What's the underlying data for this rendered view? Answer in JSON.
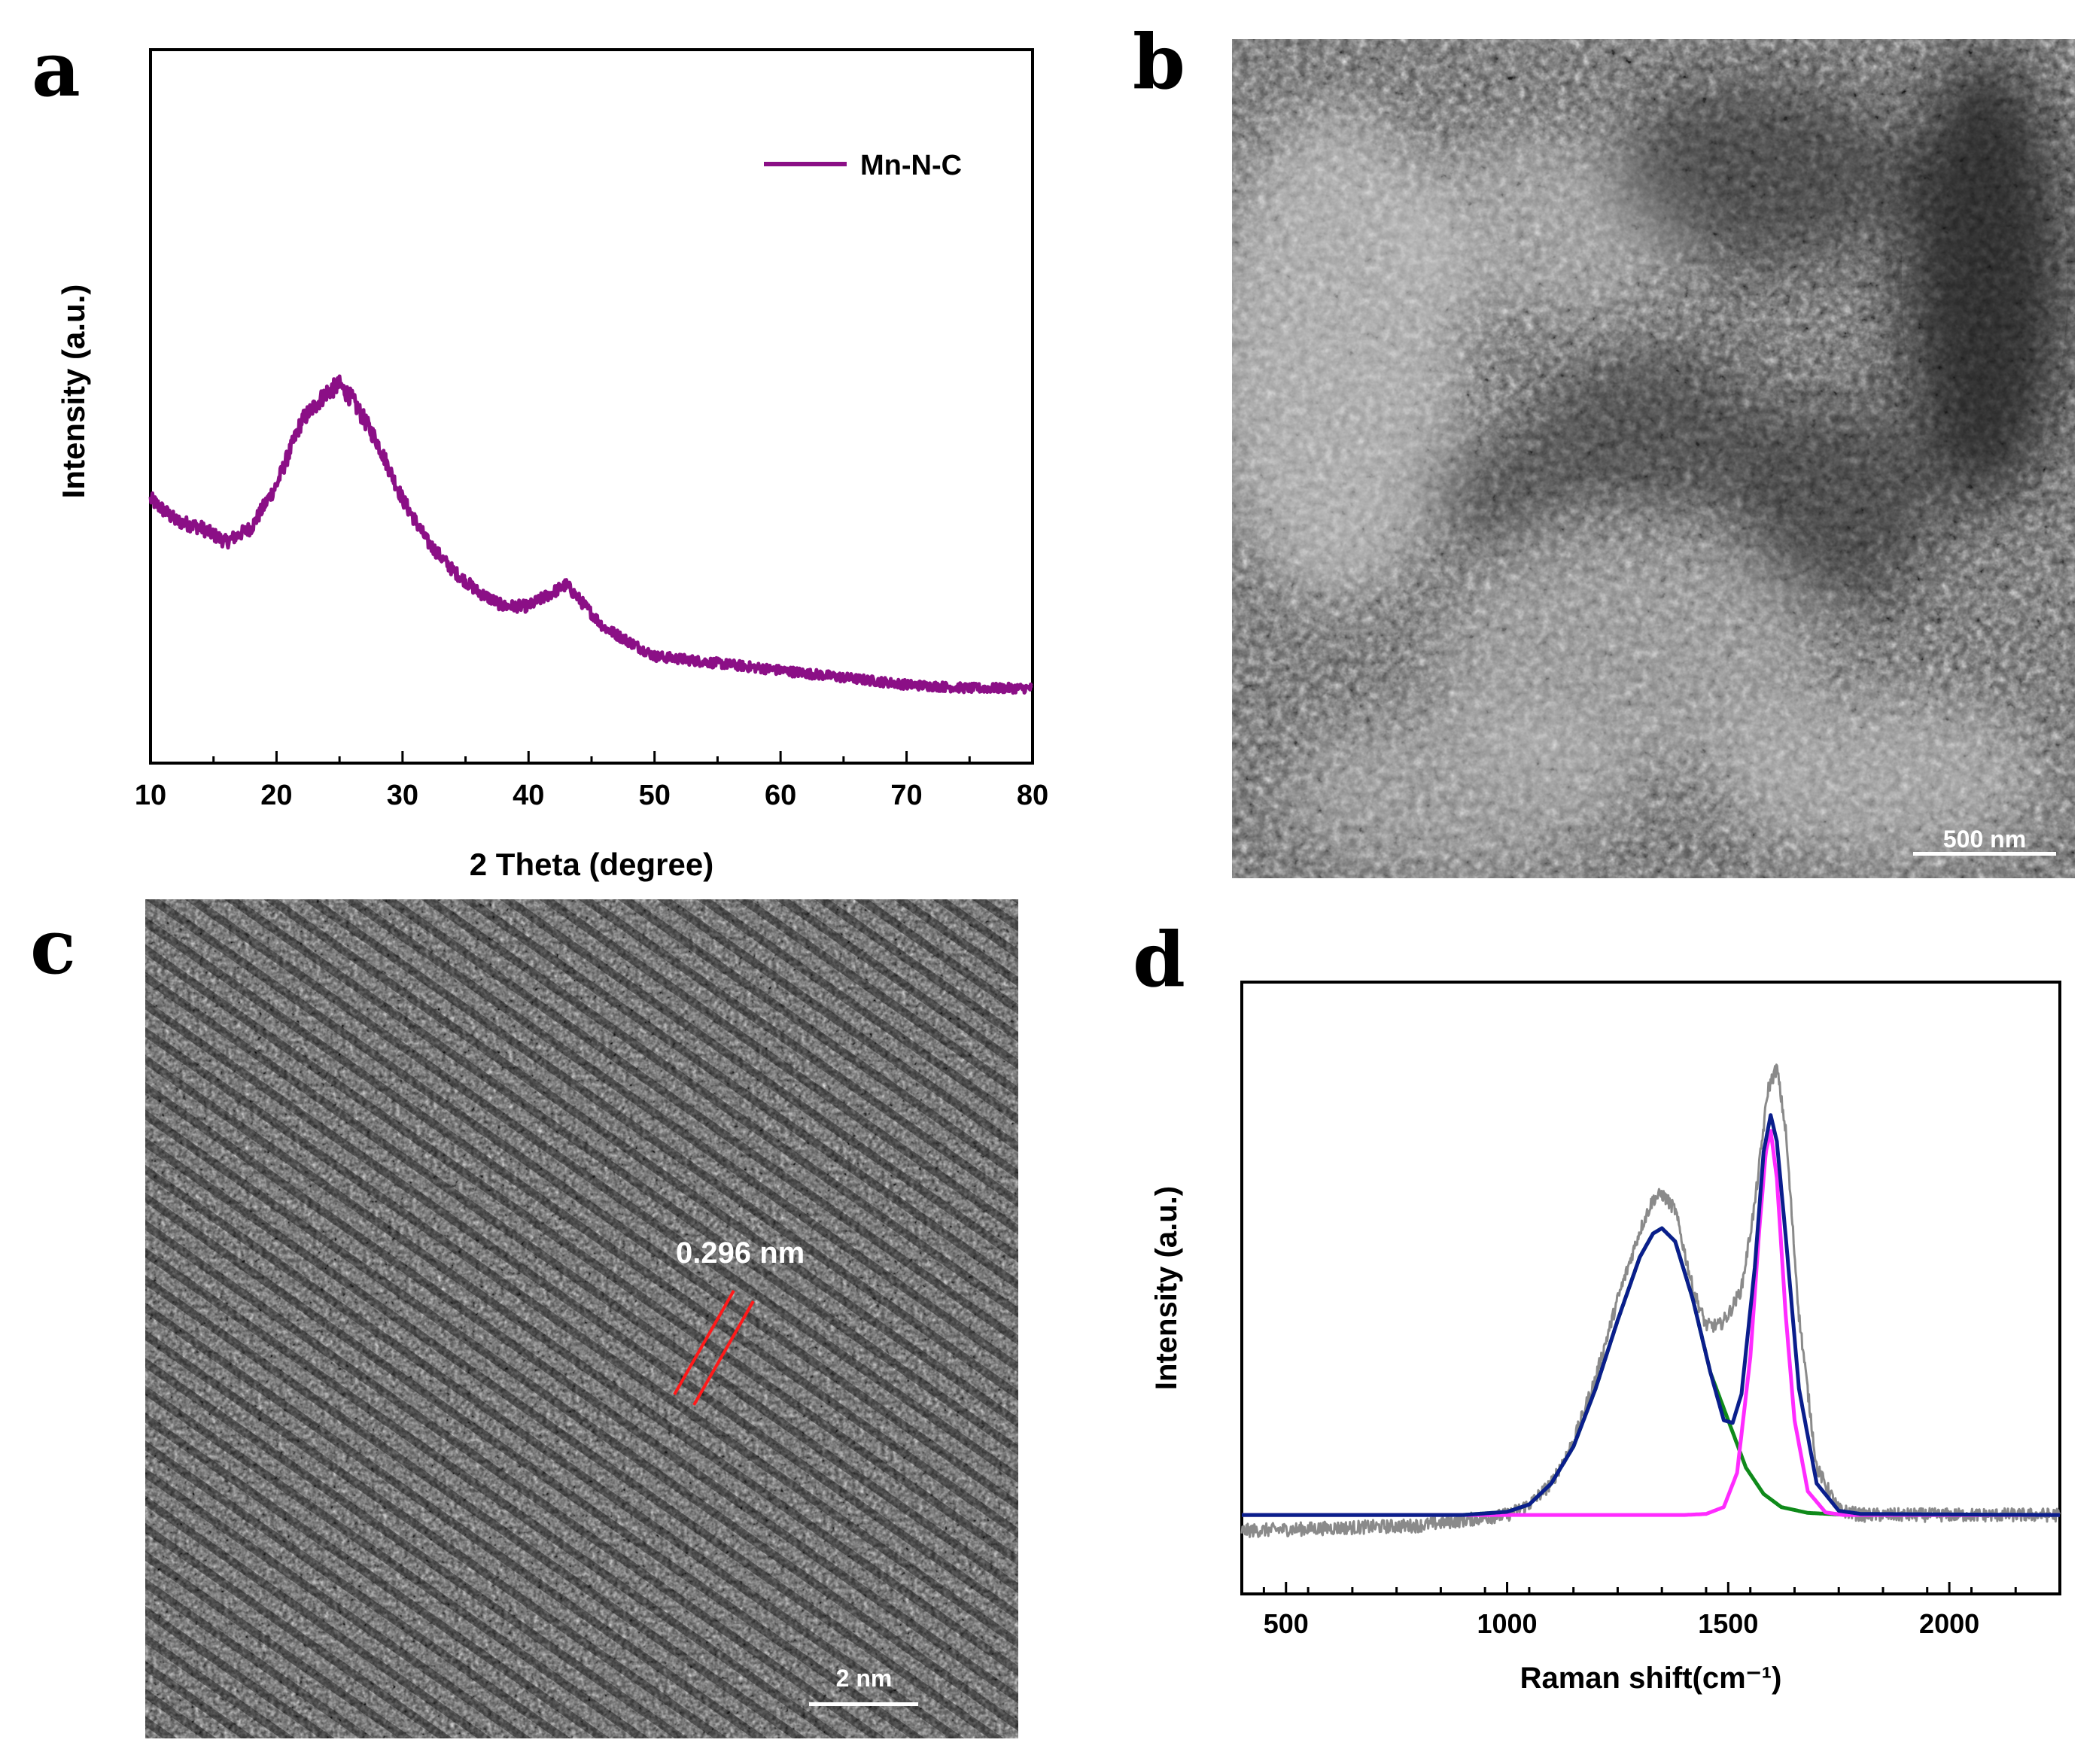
{
  "panels": {
    "a": {
      "letter": "a"
    },
    "b": {
      "letter": "b",
      "scale_bar": "500 nm"
    },
    "c": {
      "letter": "c",
      "scale_bar": "2 nm",
      "annotation": "0.296 nm"
    },
    "d": {
      "letter": "d"
    }
  },
  "colors": {
    "xrd": "#8b0f86",
    "raw": "#8a8a8a",
    "fit_total": "#0a1e8c",
    "fit_d_band": "#0f8a1a",
    "fit_g_band": "#ff2bff",
    "lattice_lines": "#ff1a1a"
  },
  "chart_data": [
    {
      "panel": "a",
      "type": "line",
      "xlabel": "2 Theta (degree)",
      "ylabel": "Intensity (a.u.)",
      "xlim": [
        10,
        80
      ],
      "ylim": [
        0,
        100
      ],
      "xticks": [
        10,
        20,
        30,
        40,
        50,
        60,
        70,
        80
      ],
      "legend": "top-right",
      "series": [
        {
          "name": "Mn-N-C",
          "x": [
            10,
            12,
            14,
            16,
            18,
            20,
            22,
            24,
            25,
            26,
            28,
            30,
            32,
            34,
            36,
            38,
            40,
            42,
            43,
            44,
            46,
            48,
            50,
            55,
            60,
            65,
            70,
            75,
            80
          ],
          "y": [
            37,
            34,
            33,
            31,
            33,
            39,
            48,
            52,
            53,
            51,
            45,
            37,
            31,
            27,
            24,
            22,
            22,
            24,
            25,
            23,
            19,
            17,
            15,
            14,
            13,
            12,
            11,
            10.5,
            10.5
          ]
        }
      ]
    },
    {
      "panel": "d",
      "type": "line",
      "xlabel": "Raman shift(cm⁻¹)",
      "ylabel": "Intensity (a.u.)",
      "xlim": [
        400,
        2250
      ],
      "ylim": [
        0,
        100
      ],
      "xticks": [
        500,
        1000,
        1500,
        2000
      ],
      "series": [
        {
          "x": [
            400,
            600,
            800,
            900,
            1000,
            1050,
            1100,
            1150,
            1200,
            1250,
            1300,
            1330,
            1350,
            1380,
            1420,
            1450,
            1480,
            1500,
            1530,
            1560,
            1590,
            1610,
            1630,
            1660,
            1700,
            1750,
            1800,
            2000,
            2250
          ],
          "y": [
            12,
            12.5,
            13,
            14,
            15,
            17,
            21,
            29,
            41,
            56,
            69,
            75,
            76,
            73,
            58,
            51,
            51,
            53,
            58,
            74,
            96,
            100,
            88,
            53,
            24,
            16,
            15,
            15,
            15
          ]
        },
        {
          "x": [
            400,
            900,
            1000,
            1050,
            1100,
            1150,
            1200,
            1250,
            1300,
            1330,
            1350,
            1380,
            1420,
            1460,
            1490,
            1510,
            1530,
            1560,
            1580,
            1596,
            1610,
            1630,
            1660,
            1700,
            1750,
            1800,
            2250
          ],
          "y": [
            15,
            15,
            15.6,
            17,
            21,
            28,
            39,
            52,
            64,
            68.5,
            69.5,
            67,
            56,
            42,
            33,
            32.5,
            38,
            62,
            84,
            91,
            86,
            68,
            39,
            21,
            15.8,
            15.2,
            15
          ]
        },
        {
          "x": [
            400,
            900,
            1000,
            1050,
            1100,
            1150,
            1200,
            1250,
            1300,
            1330,
            1350,
            1380,
            1420,
            1460,
            1500,
            1540,
            1580,
            1620,
            1680,
            1750,
            1800,
            2250
          ],
          "y": [
            15,
            15,
            15.6,
            17,
            21,
            28,
            39,
            52,
            64,
            68.5,
            69.5,
            67,
            56,
            42,
            33,
            24,
            19,
            16.5,
            15.4,
            15.1,
            15,
            15
          ]
        },
        {
          "x": [
            400,
            1400,
            1450,
            1490,
            1520,
            1550,
            1570,
            1585,
            1596,
            1610,
            1630,
            1650,
            1680,
            1720,
            1760,
            2250
          ],
          "y": [
            15,
            15,
            15.2,
            16.5,
            23,
            45,
            69,
            84,
            88,
            79,
            53,
            33,
            19.5,
            15.5,
            15,
            15
          ]
        }
      ]
    }
  ]
}
